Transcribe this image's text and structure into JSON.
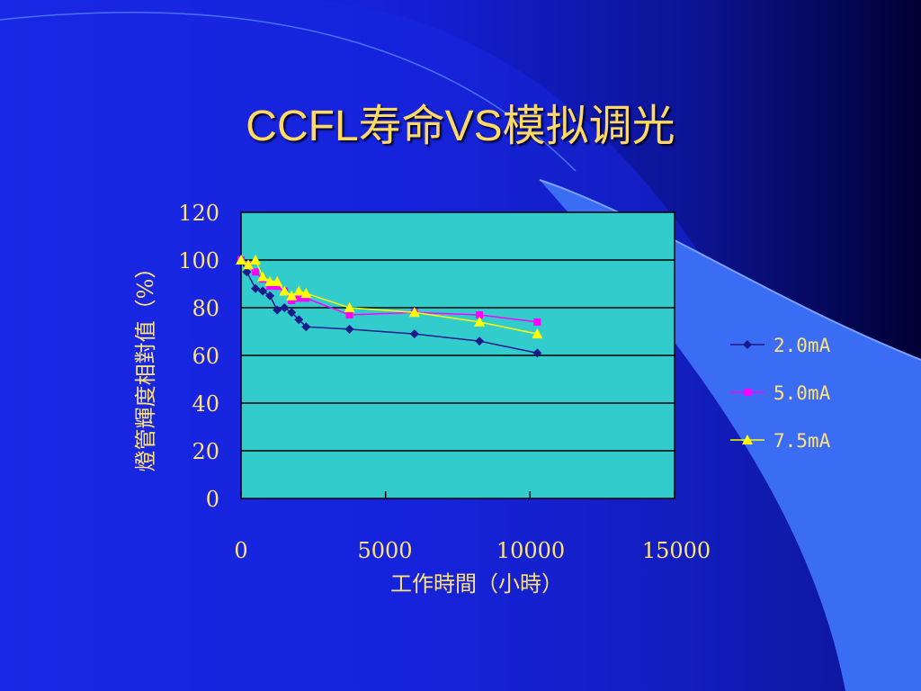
{
  "slide": {
    "title": "CCFL寿命VS模拟调光"
  },
  "colors": {
    "title": "#ffd966",
    "text": "#ffe27a",
    "plot_bg": "#33cccc",
    "grid": "#000000",
    "series": [
      "#1a1a8c",
      "#ff00ff",
      "#ffff00"
    ]
  },
  "chart_data": {
    "type": "line",
    "title": "",
    "xlabel": "工作時間（小時）",
    "ylabel": "燈管輝度相對值（%）",
    "xlim": [
      0,
      15000
    ],
    "ylim": [
      0,
      120
    ],
    "x_ticks": [
      0,
      5000,
      10000,
      15000
    ],
    "y_ticks": [
      0,
      20,
      40,
      60,
      80,
      100,
      120
    ],
    "grid": "horizontal",
    "legend_position": "right",
    "series": [
      {
        "name": "2.0mA",
        "marker": "diamond",
        "x": [
          0,
          200,
          500,
          750,
          1000,
          1250,
          1500,
          1750,
          2000,
          2250,
          3750,
          6000,
          8250,
          10250
        ],
        "y": [
          100,
          95,
          88,
          87,
          85,
          79,
          80,
          78,
          75,
          72,
          71,
          69,
          66,
          61
        ]
      },
      {
        "name": "5.0mA",
        "marker": "square",
        "x": [
          0,
          250,
          500,
          750,
          1000,
          1250,
          1500,
          1750,
          2000,
          2250,
          3750,
          6000,
          8250,
          10250
        ],
        "y": [
          100,
          98,
          95,
          92,
          89,
          89,
          87,
          83,
          84,
          84,
          77,
          78,
          77,
          74
        ]
      },
      {
        "name": "7.5mA",
        "marker": "triangle",
        "x": [
          0,
          250,
          500,
          750,
          1000,
          1250,
          1500,
          1750,
          2000,
          2250,
          3750,
          6000,
          8250,
          10250
        ],
        "y": [
          100,
          98,
          100,
          93,
          91,
          91,
          87,
          85,
          87,
          86,
          80,
          78,
          74,
          69
        ]
      }
    ]
  }
}
